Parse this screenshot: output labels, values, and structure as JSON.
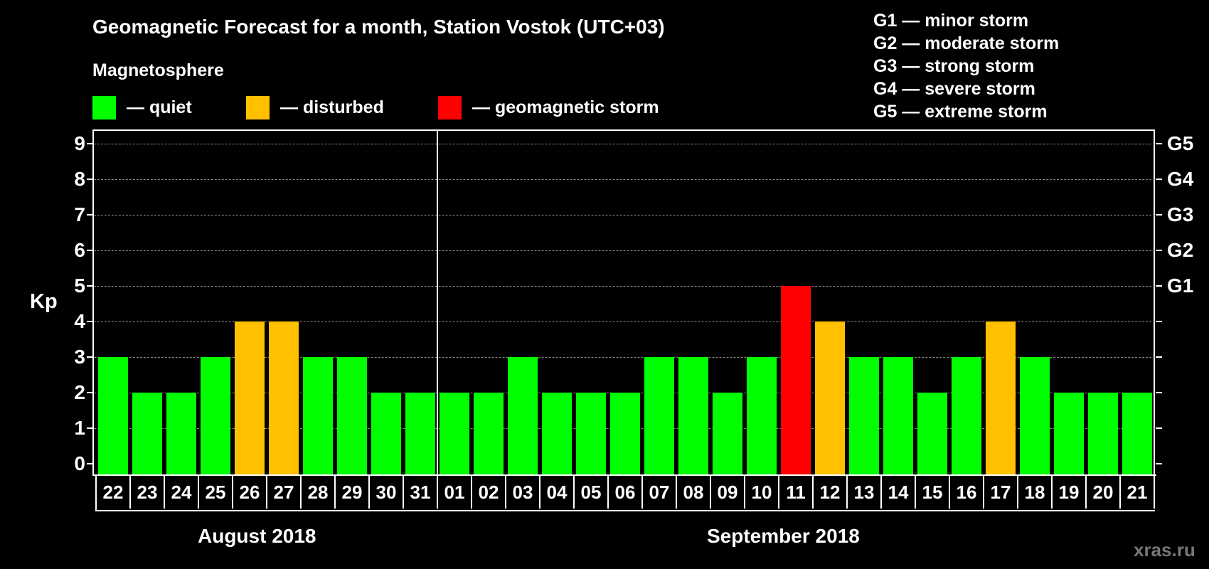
{
  "header": {
    "title": "Geomagnetic Forecast for a month, Station Vostok (UTC+03)",
    "subtitle": "Magnetosphere"
  },
  "legend": [
    {
      "label": "— quiet",
      "color": "#00ff00"
    },
    {
      "label": "— disturbed",
      "color": "#ffc000"
    },
    {
      "label": "— geomagnetic storm",
      "color": "#ff0000"
    }
  ],
  "storm_scale": [
    "G1 — minor storm",
    "G2 — moderate storm",
    "G3 — strong storm",
    "G4 — severe storm",
    "G5 — extreme storm"
  ],
  "axis": {
    "ylabel": "Kp",
    "yticks": [
      "0",
      "1",
      "2",
      "3",
      "4",
      "5",
      "6",
      "7",
      "8",
      "9"
    ],
    "right_ticks": [
      {
        "kp": 5,
        "label": "G1"
      },
      {
        "kp": 6,
        "label": "G2"
      },
      {
        "kp": 7,
        "label": "G3"
      },
      {
        "kp": 8,
        "label": "G4"
      },
      {
        "kp": 9,
        "label": "G5"
      }
    ]
  },
  "months": [
    {
      "label": "August 2018"
    },
    {
      "label": "September 2018"
    }
  ],
  "watermark": "xras.ru",
  "colors": {
    "quiet": "#00ff00",
    "disturbed": "#ffc000",
    "storm": "#ff0000",
    "background": "#000000",
    "grid": "#8a8a8a"
  },
  "chart_data": {
    "type": "bar",
    "title": "Geomagnetic Forecast for a month, Station Vostok (UTC+03)",
    "subtitle": "Magnetosphere",
    "xlabel": "",
    "ylabel": "Kp",
    "ylim": [
      0,
      9
    ],
    "grid": true,
    "legend_position": "top",
    "legend": [
      "quiet",
      "disturbed",
      "geomagnetic storm"
    ],
    "categories": [
      "22",
      "23",
      "24",
      "25",
      "26",
      "27",
      "28",
      "29",
      "30",
      "31",
      "01",
      "02",
      "03",
      "04",
      "05",
      "06",
      "07",
      "08",
      "09",
      "10",
      "11",
      "12",
      "13",
      "14",
      "15",
      "16",
      "17",
      "18",
      "19",
      "20",
      "21"
    ],
    "values": [
      3,
      2,
      2,
      3,
      4,
      4,
      3,
      3,
      2,
      2,
      2,
      2,
      3,
      2,
      2,
      2,
      3,
      3,
      2,
      3,
      5,
      4,
      3,
      3,
      2,
      3,
      4,
      3,
      2,
      2,
      2
    ],
    "status": [
      "quiet",
      "quiet",
      "quiet",
      "quiet",
      "disturbed",
      "disturbed",
      "quiet",
      "quiet",
      "quiet",
      "quiet",
      "quiet",
      "quiet",
      "quiet",
      "quiet",
      "quiet",
      "quiet",
      "quiet",
      "quiet",
      "quiet",
      "quiet",
      "storm",
      "disturbed",
      "quiet",
      "quiet",
      "quiet",
      "quiet",
      "disturbed",
      "quiet",
      "quiet",
      "quiet",
      "quiet"
    ],
    "month_groups": [
      {
        "label": "August 2018",
        "days": [
          "22",
          "23",
          "24",
          "25",
          "26",
          "27",
          "28",
          "29",
          "30",
          "31"
        ]
      },
      {
        "label": "September 2018",
        "days": [
          "01",
          "02",
          "03",
          "04",
          "05",
          "06",
          "07",
          "08",
          "09",
          "10",
          "11",
          "12",
          "13",
          "14",
          "15",
          "16",
          "17",
          "18",
          "19",
          "20",
          "21"
        ]
      }
    ],
    "secondary_axis": {
      "5": "G1",
      "6": "G2",
      "7": "G3",
      "8": "G4",
      "9": "G5"
    }
  }
}
